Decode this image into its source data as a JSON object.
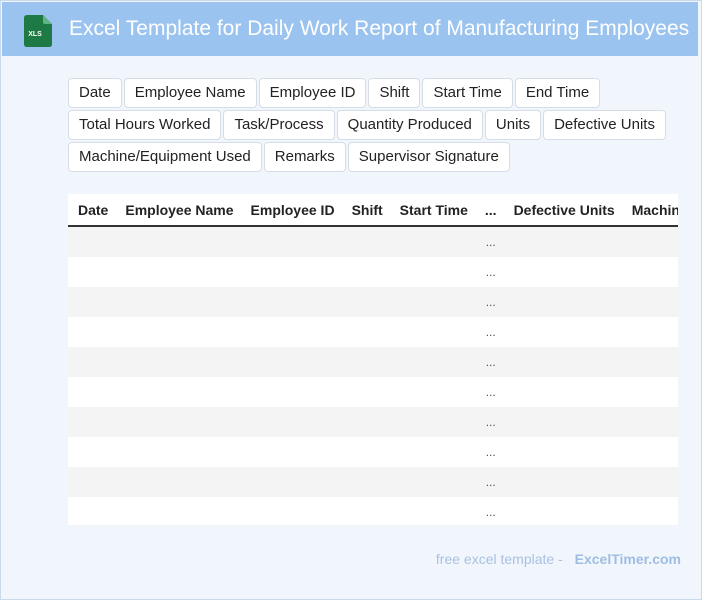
{
  "header": {
    "title": "Excel Template for Daily Work Report of Manufacturing Employees",
    "icon": "xls-file-icon",
    "icon_label": "XLS",
    "icon_color": "#1e7a45",
    "bg_color": "#9bc3ef"
  },
  "fields": [
    "Date",
    "Employee Name",
    "Employee ID",
    "Shift",
    "Start Time",
    "End Time",
    "Total Hours Worked",
    "Task/Process",
    "Quantity Produced",
    "Units",
    "Defective Units",
    "Machine/Equipment Used",
    "Remarks",
    "Supervisor Signature"
  ],
  "table": {
    "columns": [
      "Date",
      "Employee Name",
      "Employee ID",
      "Shift",
      "Start Time",
      "...",
      "Defective Units",
      "Machine/Equipment Used"
    ],
    "ellipsis": "...",
    "row_count": 10
  },
  "footer": {
    "lead": "free excel template -",
    "brand": "ExcelTimer.com"
  }
}
